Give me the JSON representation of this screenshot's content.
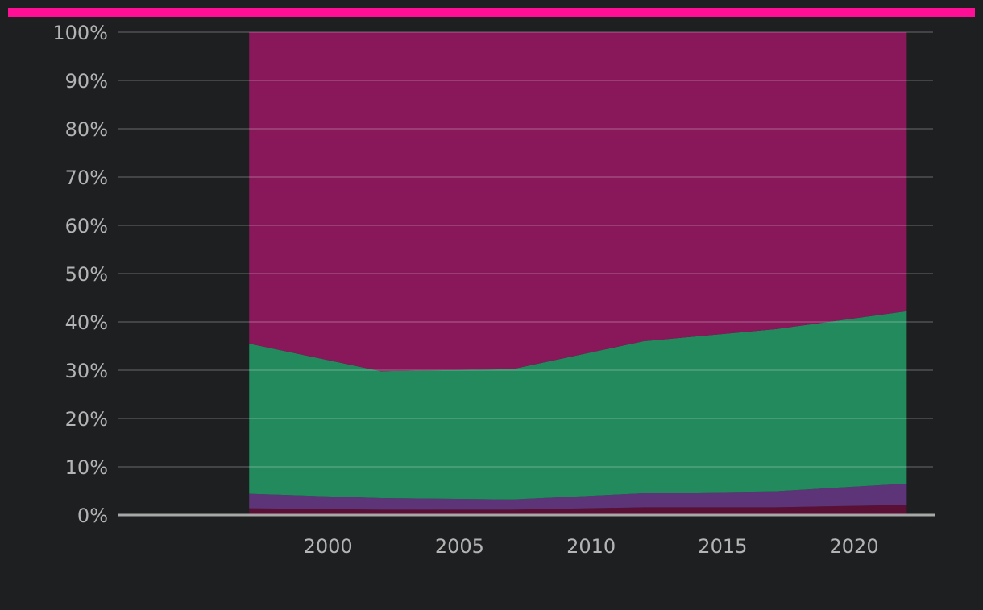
{
  "colors": {
    "background": "#1e1f21",
    "top_bar": "#ff0f96",
    "tick_text": "#b4b4b4",
    "axis_line": "#a8a8a8",
    "grid_line": "rgba(255,255,255,0.22)"
  },
  "chart_data": {
    "type": "area",
    "stacked": true,
    "normalized_percent": true,
    "x": [
      1997,
      2002,
      2007,
      2012,
      2017,
      2022
    ],
    "xlim": [
      1992,
      2023
    ],
    "ylim": [
      0,
      100
    ],
    "xticks": [
      2000,
      2005,
      2010,
      2015,
      2020
    ],
    "xtick_labels": [
      "2000",
      "2005",
      "2010",
      "2015",
      "2020"
    ],
    "yticks": [
      0,
      10,
      20,
      30,
      40,
      50,
      60,
      70,
      80,
      90,
      100
    ],
    "ytick_labels": [
      "0%",
      "10%",
      "20%",
      "30%",
      "40%",
      "50%",
      "60%",
      "70%",
      "80%",
      "90%",
      "100%"
    ],
    "grid": true,
    "series": [
      {
        "color": "#5a1035",
        "values": [
          1.4,
          1.1,
          1.1,
          1.6,
          1.6,
          2.1
        ]
      },
      {
        "color": "#5e3479",
        "values": [
          3.0,
          2.4,
          2.1,
          2.9,
          3.3,
          4.4
        ]
      },
      {
        "color": "#228a5c",
        "values": [
          31.1,
          26.3,
          27.0,
          31.5,
          33.6,
          35.7
        ]
      },
      {
        "color": "#89185b",
        "values": [
          64.5,
          70.2,
          69.8,
          64.0,
          61.5,
          57.8
        ]
      }
    ]
  }
}
